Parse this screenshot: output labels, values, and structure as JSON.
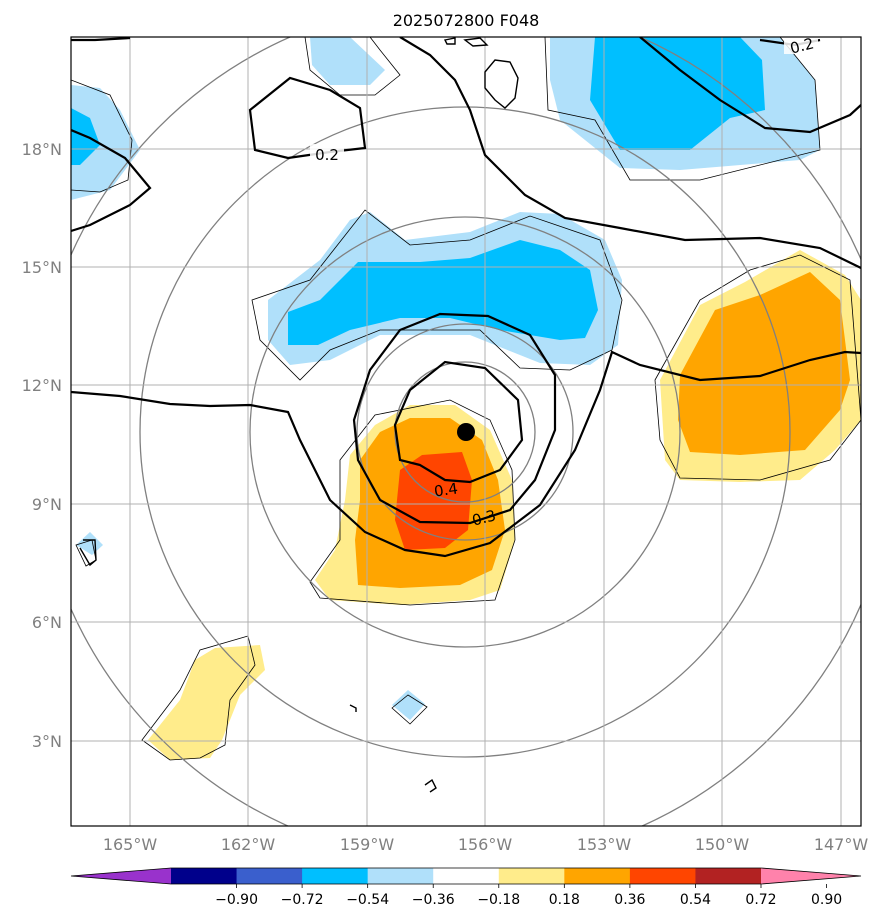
{
  "title": "2025072800 F048",
  "lat_ticks": [
    "18°N",
    "15°N",
    "12°N",
    "9°N",
    "6°N",
    "3°N"
  ],
  "lon_ticks": [
    "165°W",
    "162°W",
    "159°W",
    "156°W",
    "153°W",
    "150°W",
    "147°W"
  ],
  "contour_labels": [
    "0.2",
    "0.2",
    "0.4",
    "0.3"
  ],
  "colorbar": {
    "labels": [
      "−0.90",
      "−0.72",
      "−0.54",
      "−0.36",
      "−0.18",
      "0.18",
      "0.36",
      "0.54",
      "0.72",
      "0.90"
    ],
    "colors": [
      "#9932cc",
      "#00008b",
      "#3a5fcd",
      "#00bfff",
      "#b0e0fa",
      "#ffffff",
      "#ffec8b",
      "#ffa500",
      "#ff4500",
      "#b22222",
      "#ff82ab"
    ]
  },
  "colors": {
    "light_blue": "#b0e0fa",
    "deep_sky_blue": "#00bfff",
    "light_yellow": "#ffec8b",
    "orange": "#ffa500",
    "orange_red": "#ff4500",
    "grid": "#b0b0b0",
    "range_rings": "#808080"
  },
  "storm_center": {
    "label": "storm-center-marker"
  }
}
